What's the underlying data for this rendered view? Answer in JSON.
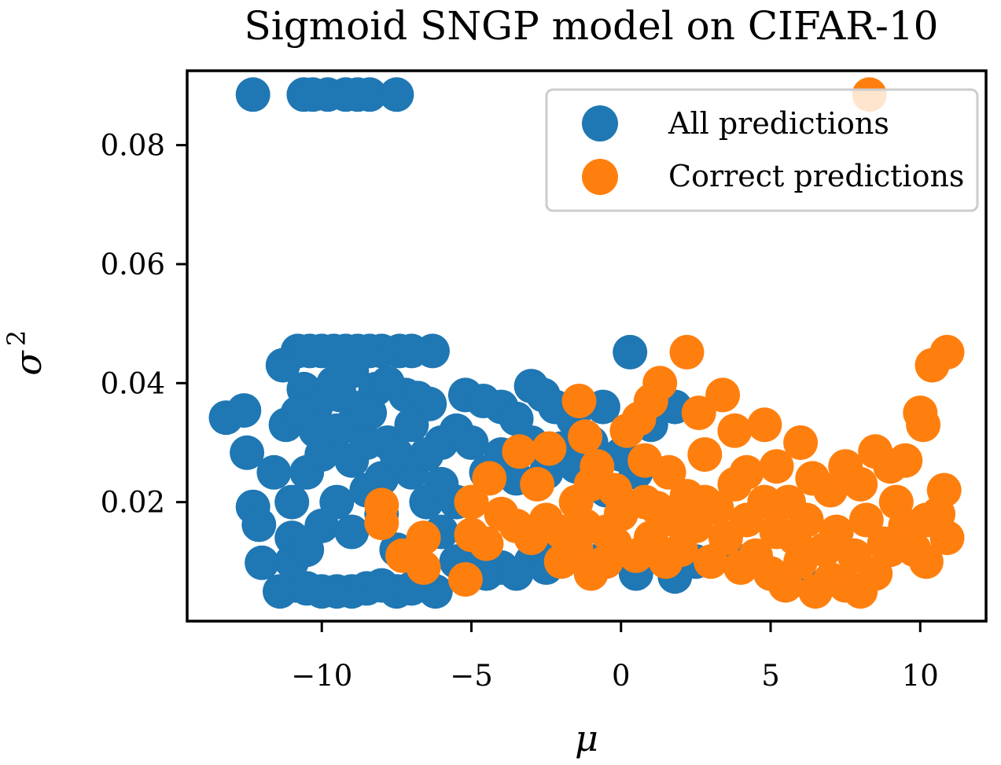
{
  "chart_data": {
    "type": "scatter",
    "title": "Sigmoid SNGP model on CIFAR-10",
    "xlabel": "μ",
    "ylabel": "σ",
    "ylabel_superscript": "2",
    "xlim": [
      -14.5,
      12.2
    ],
    "ylim": [
      0.0,
      0.0925
    ],
    "xticks": [
      -10,
      -5,
      0,
      5,
      10
    ],
    "xtick_labels": [
      "−10",
      "−5",
      "0",
      "5",
      "10"
    ],
    "yticks": [
      0.02,
      0.04,
      0.06,
      0.08
    ],
    "ytick_labels": [
      "0.02",
      "0.04",
      "0.06",
      "0.08"
    ],
    "grid": false,
    "legend_position": "top-right",
    "series": [
      {
        "name": "All predictions",
        "color": "#1f77b4",
        "points": [
          [
            -12.3,
            0.0885
          ],
          [
            -10.6,
            0.0885
          ],
          [
            -10.3,
            0.0885
          ],
          [
            -9.8,
            0.0885
          ],
          [
            -9.2,
            0.0885
          ],
          [
            -8.8,
            0.0885
          ],
          [
            -8.4,
            0.0885
          ],
          [
            -7.5,
            0.0885
          ],
          [
            -13.2,
            0.0342
          ],
          [
            -12.6,
            0.0354
          ],
          [
            -12.5,
            0.0283
          ],
          [
            -12.3,
            0.0192
          ],
          [
            -12.1,
            0.0162
          ],
          [
            -12.0,
            0.0098
          ],
          [
            -11.6,
            0.025
          ],
          [
            -11.3,
            0.043
          ],
          [
            -11.2,
            0.033
          ],
          [
            -11.0,
            0.014
          ],
          [
            -10.8,
            0.0454
          ],
          [
            -10.6,
            0.039
          ],
          [
            -10.4,
            0.0454
          ],
          [
            -10.2,
            0.036
          ],
          [
            -10.0,
            0.0454
          ],
          [
            -9.8,
            0.03
          ],
          [
            -9.6,
            0.0454
          ],
          [
            -9.4,
            0.038
          ],
          [
            -9.2,
            0.0454
          ],
          [
            -9.0,
            0.033
          ],
          [
            -8.8,
            0.0454
          ],
          [
            -8.6,
            0.036
          ],
          [
            -8.4,
            0.0454
          ],
          [
            -8.2,
            0.039
          ],
          [
            -8.0,
            0.0454
          ],
          [
            -7.8,
            0.03
          ],
          [
            -7.4,
            0.0454
          ],
          [
            -7.0,
            0.0454
          ],
          [
            -6.3,
            0.0454
          ],
          [
            -7.2,
            0.038
          ],
          [
            -6.8,
            0.0375
          ],
          [
            -6.4,
            0.0365
          ],
          [
            -6.0,
            0.03
          ],
          [
            -5.5,
            0.032
          ],
          [
            -11.4,
            0.005
          ],
          [
            -10.9,
            0.006
          ],
          [
            -10.5,
            0.0055
          ],
          [
            -10.0,
            0.005
          ],
          [
            -9.5,
            0.005
          ],
          [
            -9.0,
            0.005
          ],
          [
            -8.5,
            0.0055
          ],
          [
            -8.0,
            0.006
          ],
          [
            -7.5,
            0.005
          ],
          [
            -7.0,
            0.0055
          ],
          [
            -6.5,
            0.006
          ],
          [
            -6.2,
            0.005
          ],
          [
            -11.0,
            0.01
          ],
          [
            -10.5,
            0.012
          ],
          [
            -10.0,
            0.016
          ],
          [
            -9.5,
            0.02
          ],
          [
            -9.0,
            0.015
          ],
          [
            -8.5,
            0.022
          ],
          [
            -8.0,
            0.018
          ],
          [
            -7.5,
            0.012
          ],
          [
            -7.0,
            0.025
          ],
          [
            -6.5,
            0.02
          ],
          [
            -6.0,
            0.015
          ],
          [
            -5.5,
            0.01
          ],
          [
            -11.0,
            0.02
          ],
          [
            -10.5,
            0.025
          ],
          [
            -10.0,
            0.028
          ],
          [
            -9.5,
            0.032
          ],
          [
            -9.0,
            0.027
          ],
          [
            -8.5,
            0.03
          ],
          [
            -8.0,
            0.024
          ],
          [
            -7.5,
            0.028
          ],
          [
            -7.0,
            0.033
          ],
          [
            -6.5,
            0.028
          ],
          [
            -6.0,
            0.023
          ],
          [
            -5.5,
            0.02
          ],
          [
            -10.8,
            0.035
          ],
          [
            -10.2,
            0.032
          ],
          [
            -9.6,
            0.04
          ],
          [
            -9.0,
            0.042
          ],
          [
            -8.4,
            0.035
          ],
          [
            -7.8,
            0.04
          ],
          [
            -5.2,
            0.038
          ],
          [
            -4.6,
            0.037
          ],
          [
            -4.0,
            0.036
          ],
          [
            -3.5,
            0.034
          ],
          [
            -3.0,
            0.0395
          ],
          [
            -2.6,
            0.038
          ],
          [
            -2.2,
            0.036
          ],
          [
            -1.6,
            0.034
          ],
          [
            -0.6,
            0.036
          ],
          [
            0.3,
            0.0452
          ],
          [
            1.0,
            0.033
          ],
          [
            1.8,
            0.036
          ],
          [
            -5.0,
            0.03
          ],
          [
            -4.5,
            0.025
          ],
          [
            -4.0,
            0.028
          ],
          [
            -3.5,
            0.024
          ],
          [
            -3.0,
            0.03
          ],
          [
            -2.5,
            0.025
          ],
          [
            -2.0,
            0.029
          ],
          [
            -1.5,
            0.026
          ],
          [
            -1.0,
            0.03
          ],
          [
            -0.5,
            0.022
          ],
          [
            0.0,
            0.028
          ],
          [
            0.5,
            0.025
          ],
          [
            -5.0,
            0.01
          ],
          [
            -4.5,
            0.008
          ],
          [
            -4.0,
            0.009
          ],
          [
            -3.5,
            0.008
          ],
          [
            -3.0,
            0.01
          ],
          [
            -2.5,
            0.009
          ],
          [
            -2.0,
            0.012
          ],
          [
            -1.5,
            0.014
          ],
          [
            -1.0,
            0.009
          ],
          [
            -0.5,
            0.011
          ],
          [
            0.5,
            0.008
          ],
          [
            1.0,
            0.012
          ],
          [
            1.8,
            0.0075
          ],
          [
            2.5,
            0.01
          ],
          [
            3.5,
            0.012
          ],
          [
            4.5,
            0.01
          ],
          [
            5.0,
            0.008
          ],
          [
            6.0,
            0.007
          ]
        ]
      },
      {
        "name": "Correct predictions",
        "color": "#ff7f0e",
        "points": [
          [
            8.3,
            0.0885
          ],
          [
            -8.0,
            0.0195
          ],
          [
            -8.0,
            0.0165
          ],
          [
            -7.3,
            0.011
          ],
          [
            -6.6,
            0.014
          ],
          [
            -6.6,
            0.009
          ],
          [
            -5.2,
            0.007
          ],
          [
            -5.0,
            0.02
          ],
          [
            -5.0,
            0.0145
          ],
          [
            -4.4,
            0.024
          ],
          [
            -4.0,
            0.018
          ],
          [
            -3.4,
            0.0285
          ],
          [
            -2.8,
            0.023
          ],
          [
            -2.4,
            0.029
          ],
          [
            -1.5,
            0.02
          ],
          [
            -1.5,
            0.012
          ],
          [
            -1.4,
            0.037
          ],
          [
            -1.2,
            0.031
          ],
          [
            -0.8,
            0.026
          ],
          [
            -0.5,
            0.015
          ],
          [
            -0.2,
            0.022
          ],
          [
            0.2,
            0.032
          ],
          [
            0.6,
            0.034
          ],
          [
            0.8,
            0.027
          ],
          [
            1.0,
            0.037
          ],
          [
            1.3,
            0.04
          ],
          [
            1.6,
            0.025
          ],
          [
            2.2,
            0.0452
          ],
          [
            2.6,
            0.035
          ],
          [
            2.8,
            0.028
          ],
          [
            3.4,
            0.038
          ],
          [
            3.8,
            0.032
          ],
          [
            4.2,
            0.025
          ],
          [
            4.8,
            0.033
          ],
          [
            5.2,
            0.026
          ],
          [
            5.6,
            0.02
          ],
          [
            6.0,
            0.03
          ],
          [
            6.4,
            0.024
          ],
          [
            7.0,
            0.022
          ],
          [
            7.5,
            0.026
          ],
          [
            8.0,
            0.023
          ],
          [
            8.5,
            0.0285
          ],
          [
            9.0,
            0.026
          ],
          [
            9.5,
            0.027
          ],
          [
            10.0,
            0.035
          ],
          [
            10.1,
            0.033
          ],
          [
            10.4,
            0.043
          ],
          [
            10.9,
            0.0452
          ],
          [
            10.8,
            0.022
          ],
          [
            10.9,
            0.014
          ],
          [
            10.6,
            0.018
          ],
          [
            10.2,
            0.01
          ],
          [
            9.5,
            0.016
          ],
          [
            9.0,
            0.012
          ],
          [
            8.5,
            0.008
          ],
          [
            8.0,
            0.005
          ],
          [
            7.5,
            0.006
          ],
          [
            7.0,
            0.007
          ],
          [
            6.5,
            0.005
          ],
          [
            6.0,
            0.01
          ],
          [
            5.5,
            0.006
          ],
          [
            5.0,
            0.008
          ],
          [
            4.5,
            0.011
          ],
          [
            4.0,
            0.009
          ],
          [
            3.5,
            0.014
          ],
          [
            3.0,
            0.01
          ],
          [
            2.5,
            0.016
          ],
          [
            2.0,
            0.012
          ],
          [
            1.5,
            0.01
          ],
          [
            1.0,
            0.014
          ],
          [
            0.5,
            0.011
          ],
          [
            0.0,
            0.018
          ],
          [
            -0.5,
            0.01
          ],
          [
            -1.0,
            0.008
          ],
          [
            -2.0,
            0.015
          ],
          [
            -2.5,
            0.017
          ],
          [
            -3.0,
            0.014
          ],
          [
            -3.5,
            0.016
          ],
          [
            -4.5,
            0.013
          ],
          [
            -2.0,
            0.01
          ],
          [
            -1.0,
            0.023
          ],
          [
            1.2,
            0.019
          ],
          [
            2.2,
            0.021
          ],
          [
            3.2,
            0.019
          ],
          [
            4.2,
            0.017
          ],
          [
            5.2,
            0.015
          ],
          [
            6.2,
            0.017
          ],
          [
            7.2,
            0.015
          ],
          [
            8.2,
            0.017
          ],
          [
            9.2,
            0.02
          ],
          [
            10.2,
            0.017
          ],
          [
            6.8,
            0.012
          ],
          [
            7.8,
            0.011
          ],
          [
            8.8,
            0.013
          ],
          [
            9.8,
            0.012
          ],
          [
            5.8,
            0.014
          ],
          [
            4.8,
            0.02
          ],
          [
            3.8,
            0.023
          ],
          [
            2.8,
            0.02
          ],
          [
            1.8,
            0.017
          ],
          [
            0.8,
            0.02
          ],
          [
            -0.2,
            0.013
          ],
          [
            -1.2,
            0.016
          ]
        ]
      }
    ]
  }
}
